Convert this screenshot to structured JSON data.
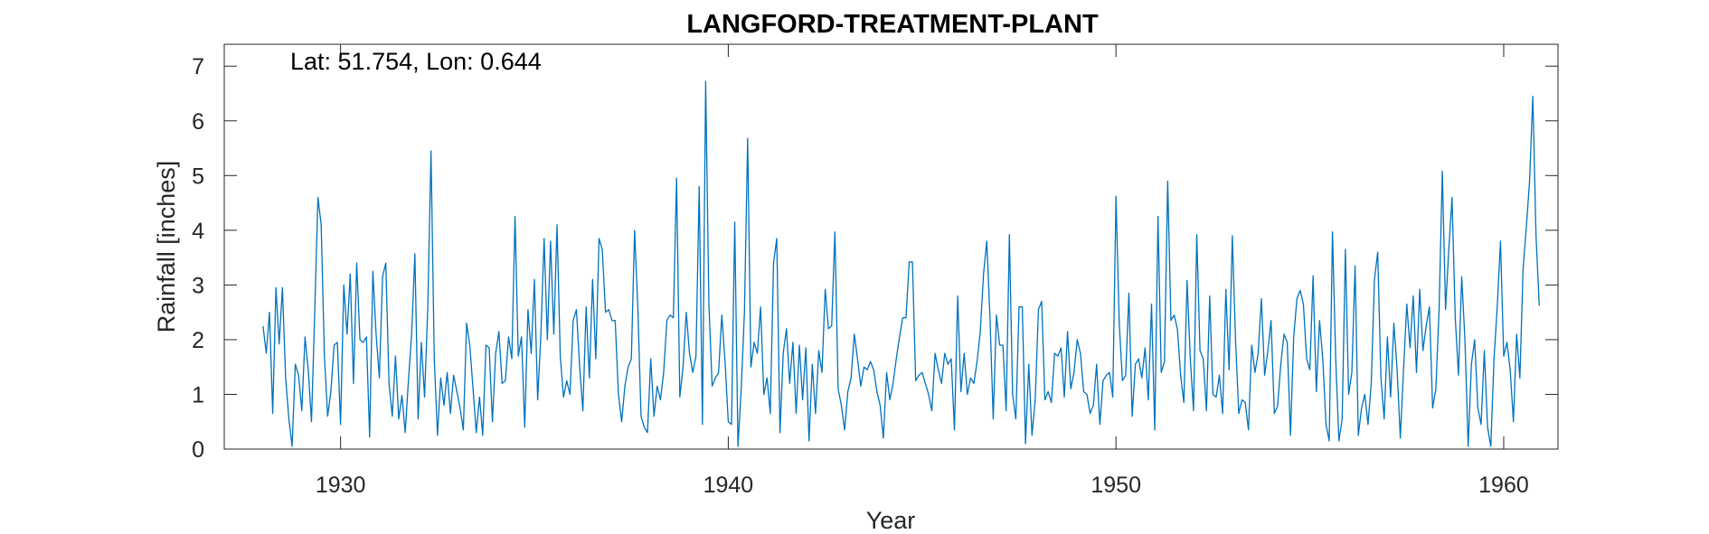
{
  "chart_data": {
    "type": "line",
    "title": "LANGFORD-TREATMENT-PLANT",
    "xlabel": "Year",
    "ylabel": "Rainfall [inches]",
    "annotation": "Lat: 51.754, Lon: 0.644",
    "xlim": [
      1927,
      1961.4
    ],
    "ylim": [
      0,
      7.4
    ],
    "x_ticks": [
      1930,
      1940,
      1950,
      1960
    ],
    "y_ticks": [
      0,
      1,
      2,
      3,
      4,
      5,
      6,
      7
    ],
    "grid": false,
    "line_color": "#0072BD",
    "axis_color": "#262626",
    "series": [
      {
        "start": [
          1928,
          1
        ],
        "frequency": "monthly",
        "values": [
          2.25,
          1.75,
          2.5,
          0.65,
          2.95,
          1.92,
          2.95,
          1.3,
          0.55,
          0.05,
          1.55,
          1.35,
          0.7,
          2.05,
          1.45,
          0.5,
          2.5,
          4.6,
          4.1,
          1.7,
          0.6,
          1.05,
          1.9,
          1.95,
          0.45,
          3.0,
          2.1,
          3.2,
          1.2,
          3.4,
          2.0,
          1.95,
          2.05,
          0.22,
          3.25,
          2.1,
          1.3,
          3.15,
          3.4,
          1.2,
          0.6,
          1.7,
          0.55,
          0.98,
          0.3,
          1.25,
          2.1,
          3.57,
          0.55,
          1.95,
          0.95,
          2.6,
          5.45,
          1.65,
          0.25,
          1.3,
          0.8,
          1.4,
          0.65,
          1.35,
          1.05,
          0.75,
          0.35,
          2.3,
          1.9,
          1.1,
          0.3,
          0.95,
          0.25,
          1.9,
          1.85,
          0.5,
          1.75,
          2.15,
          1.2,
          1.25,
          2.05,
          1.65,
          4.25,
          1.7,
          2.05,
          0.4,
          2.55,
          1.75,
          3.1,
          0.9,
          2.1,
          3.85,
          2.0,
          3.8,
          2.1,
          4.1,
          1.7,
          0.95,
          1.25,
          1.0,
          2.35,
          2.55,
          1.5,
          0.7,
          2.6,
          1.3,
          3.1,
          1.65,
          3.85,
          3.65,
          2.5,
          2.55,
          2.35,
          2.35,
          1.0,
          0.5,
          1.15,
          1.5,
          1.65,
          4.0,
          2.6,
          0.6,
          0.4,
          0.3,
          1.65,
          0.6,
          1.15,
          0.9,
          1.4,
          2.35,
          2.45,
          2.4,
          4.95,
          0.95,
          1.5,
          2.5,
          1.75,
          1.4,
          1.7,
          4.8,
          0.45,
          6.72,
          2.65,
          1.15,
          1.3,
          1.4,
          2.45,
          1.6,
          0.5,
          0.45,
          4.15,
          0.05,
          1.1,
          2.5,
          5.68,
          1.5,
          1.95,
          1.75,
          2.6,
          1.0,
          1.3,
          0.65,
          3.4,
          3.85,
          0.3,
          1.75,
          2.2,
          1.2,
          1.95,
          0.65,
          1.9,
          0.9,
          1.85,
          0.15,
          1.55,
          0.65,
          1.8,
          1.4,
          2.92,
          2.2,
          2.25,
          3.97,
          1.1,
          0.8,
          0.35,
          1.05,
          1.3,
          2.1,
          1.65,
          1.15,
          1.5,
          1.45,
          1.6,
          1.45,
          1.05,
          0.8,
          0.2,
          1.4,
          0.9,
          1.2,
          1.65,
          2.05,
          2.4,
          2.4,
          3.42,
          3.42,
          1.25,
          1.35,
          1.4,
          1.2,
          1.0,
          0.7,
          1.75,
          1.45,
          1.2,
          1.75,
          1.55,
          1.65,
          0.35,
          2.8,
          1.05,
          1.75,
          1.0,
          1.3,
          1.2,
          1.6,
          2.15,
          3.2,
          3.8,
          2.4,
          0.55,
          2.45,
          1.9,
          1.9,
          0.7,
          3.92,
          1.0,
          0.55,
          2.6,
          2.6,
          0.1,
          1.55,
          0.25,
          0.9,
          2.55,
          2.7,
          0.9,
          1.05,
          0.85,
          1.75,
          1.7,
          1.85,
          0.95,
          2.15,
          1.1,
          1.4,
          2.0,
          1.75,
          1.05,
          1.0,
          0.65,
          0.8,
          1.55,
          0.45,
          1.25,
          1.35,
          1.4,
          0.95,
          4.62,
          2.3,
          1.25,
          1.35,
          2.85,
          0.6,
          1.55,
          1.65,
          1.3,
          1.85,
          0.9,
          2.65,
          0.35,
          4.25,
          1.4,
          1.6,
          4.9,
          2.35,
          2.45,
          2.2,
          1.35,
          0.85,
          3.08,
          1.65,
          0.7,
          3.92,
          1.8,
          1.65,
          0.7,
          2.8,
          1.0,
          0.95,
          1.35,
          0.65,
          2.92,
          1.45,
          3.9,
          2.0,
          0.65,
          0.9,
          0.85,
          0.35,
          1.9,
          1.4,
          1.75,
          2.75,
          1.35,
          1.8,
          2.35,
          0.65,
          0.78,
          1.55,
          2.1,
          1.95,
          0.25,
          2.05,
          2.75,
          2.9,
          2.65,
          1.65,
          1.45,
          3.17,
          1.05,
          2.35,
          1.65,
          0.45,
          0.15,
          3.97,
          1.65,
          0.15,
          0.55,
          3.65,
          1.0,
          1.4,
          3.35,
          0.25,
          0.75,
          1.0,
          0.45,
          1.2,
          3.1,
          3.6,
          1.3,
          0.55,
          2.05,
          0.95,
          2.3,
          1.45,
          0.2,
          1.45,
          2.65,
          1.85,
          2.8,
          1.4,
          2.92,
          1.8,
          2.25,
          2.6,
          0.75,
          1.1,
          2.55,
          5.08,
          2.55,
          3.65,
          4.6,
          2.4,
          1.35,
          3.15,
          2.0,
          0.05,
          1.55,
          2.0,
          0.75,
          0.45,
          1.8,
          0.4,
          0.05,
          1.65,
          2.6,
          3.8,
          1.7,
          1.95,
          1.45,
          0.5,
          2.1,
          1.3,
          3.3,
          4.05,
          4.9,
          6.45,
          3.9,
          2.62
        ]
      }
    ]
  }
}
